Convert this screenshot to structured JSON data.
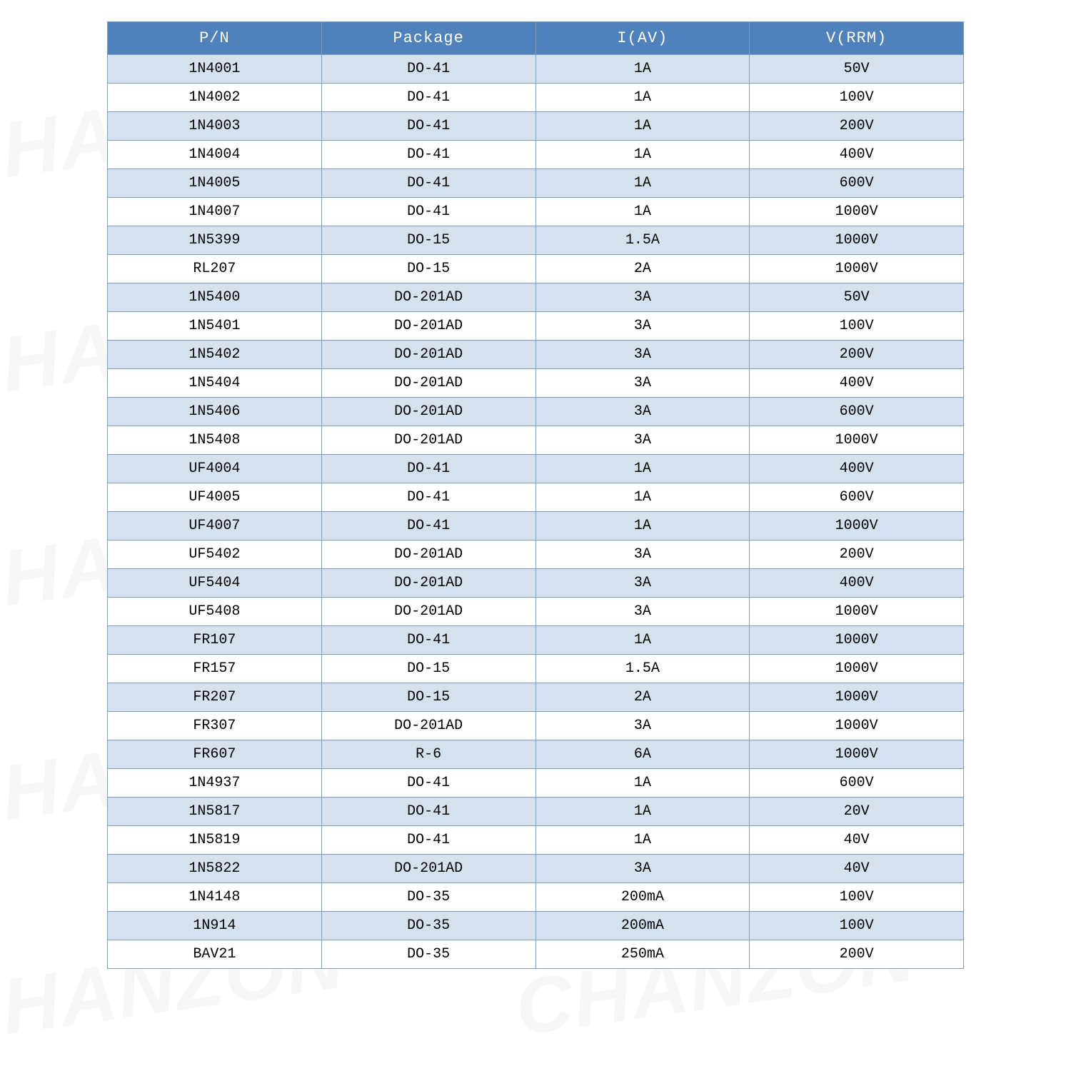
{
  "watermark": "CHANZON",
  "table": {
    "header_bg": "#4f81bd",
    "header_fg": "#ffffff",
    "row_odd_bg": "#d6e1ef",
    "row_even_bg": "#ffffff",
    "border_color": "#7f9db9",
    "columns": [
      "P/N",
      "Package",
      "I(AV)",
      "V(RRM)"
    ],
    "rows": [
      [
        "1N4001",
        "DO-41",
        "1A",
        "50V"
      ],
      [
        "1N4002",
        "DO-41",
        "1A",
        "100V"
      ],
      [
        "1N4003",
        "DO-41",
        "1A",
        "200V"
      ],
      [
        "1N4004",
        "DO-41",
        "1A",
        "400V"
      ],
      [
        "1N4005",
        "DO-41",
        "1A",
        "600V"
      ],
      [
        "1N4007",
        "DO-41",
        "1A",
        "1000V"
      ],
      [
        "1N5399",
        "DO-15",
        "1.5A",
        "1000V"
      ],
      [
        "RL207",
        "DO-15",
        "2A",
        "1000V"
      ],
      [
        "1N5400",
        "DO-201AD",
        "3A",
        "50V"
      ],
      [
        "1N5401",
        "DO-201AD",
        "3A",
        "100V"
      ],
      [
        "1N5402",
        "DO-201AD",
        "3A",
        "200V"
      ],
      [
        "1N5404",
        "DO-201AD",
        "3A",
        "400V"
      ],
      [
        "1N5406",
        "DO-201AD",
        "3A",
        "600V"
      ],
      [
        "1N5408",
        "DO-201AD",
        "3A",
        "1000V"
      ],
      [
        "UF4004",
        "DO-41",
        "1A",
        "400V"
      ],
      [
        "UF4005",
        "DO-41",
        "1A",
        "600V"
      ],
      [
        "UF4007",
        "DO-41",
        "1A",
        "1000V"
      ],
      [
        "UF5402",
        "DO-201AD",
        "3A",
        "200V"
      ],
      [
        "UF5404",
        "DO-201AD",
        "3A",
        "400V"
      ],
      [
        "UF5408",
        "DO-201AD",
        "3A",
        "1000V"
      ],
      [
        "FR107",
        "DO-41",
        "1A",
        "1000V"
      ],
      [
        "FR157",
        "DO-15",
        "1.5A",
        "1000V"
      ],
      [
        "FR207",
        "DO-15",
        "2A",
        "1000V"
      ],
      [
        "FR307",
        "DO-201AD",
        "3A",
        "1000V"
      ],
      [
        "FR607",
        "R-6",
        "6A",
        "1000V"
      ],
      [
        "1N4937",
        "DO-41",
        "1A",
        "600V"
      ],
      [
        "1N5817",
        "DO-41",
        "1A",
        "20V"
      ],
      [
        "1N5819",
        "DO-41",
        "1A",
        "40V"
      ],
      [
        "1N5822",
        "DO-201AD",
        "3A",
        "40V"
      ],
      [
        "1N4148",
        "DO-35",
        "200mA",
        "100V"
      ],
      [
        "1N914",
        "DO-35",
        "200mA",
        "100V"
      ],
      [
        "BAV21",
        "DO-35",
        "250mA",
        "200V"
      ]
    ]
  }
}
